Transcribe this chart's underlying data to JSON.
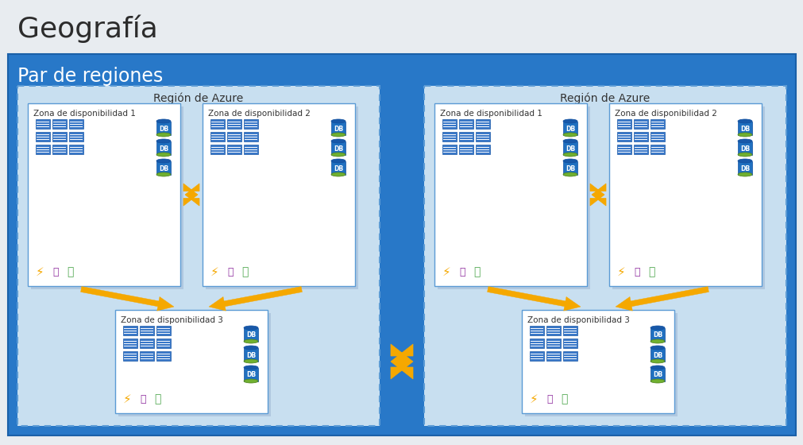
{
  "title": "Geografía",
  "par_label": "Par de regiones",
  "region_label": "Región de Azure",
  "zone_labels": [
    "Zona de disponibilidad 1",
    "Zona de disponibilidad 2",
    "Zona de disponibilidad 3"
  ],
  "bg_top_color": "#e8ecf0",
  "par_bg": "#2878c8",
  "region_bg": "#c8dff0",
  "region_border": "#5b9bd5",
  "zone_bg": "#ffffff",
  "zone_shadow": "#b0c8e0",
  "zone_border": "#5b9bd5",
  "title_color": "#2c2c2c",
  "par_text_color": "#ffffff",
  "region_text_color": "#333333",
  "zone_text_color": "#333333",
  "arrow_color": "#f5a800",
  "server_face": "#3a78c8",
  "server_edge": "#1a58a8",
  "db_body": "#2070c0",
  "db_top": "#70b030",
  "db_text": "#ffffff",
  "icon_bolt": "#f5a800",
  "icon_server": "#9030a0",
  "icon_thermo": "#50a850"
}
